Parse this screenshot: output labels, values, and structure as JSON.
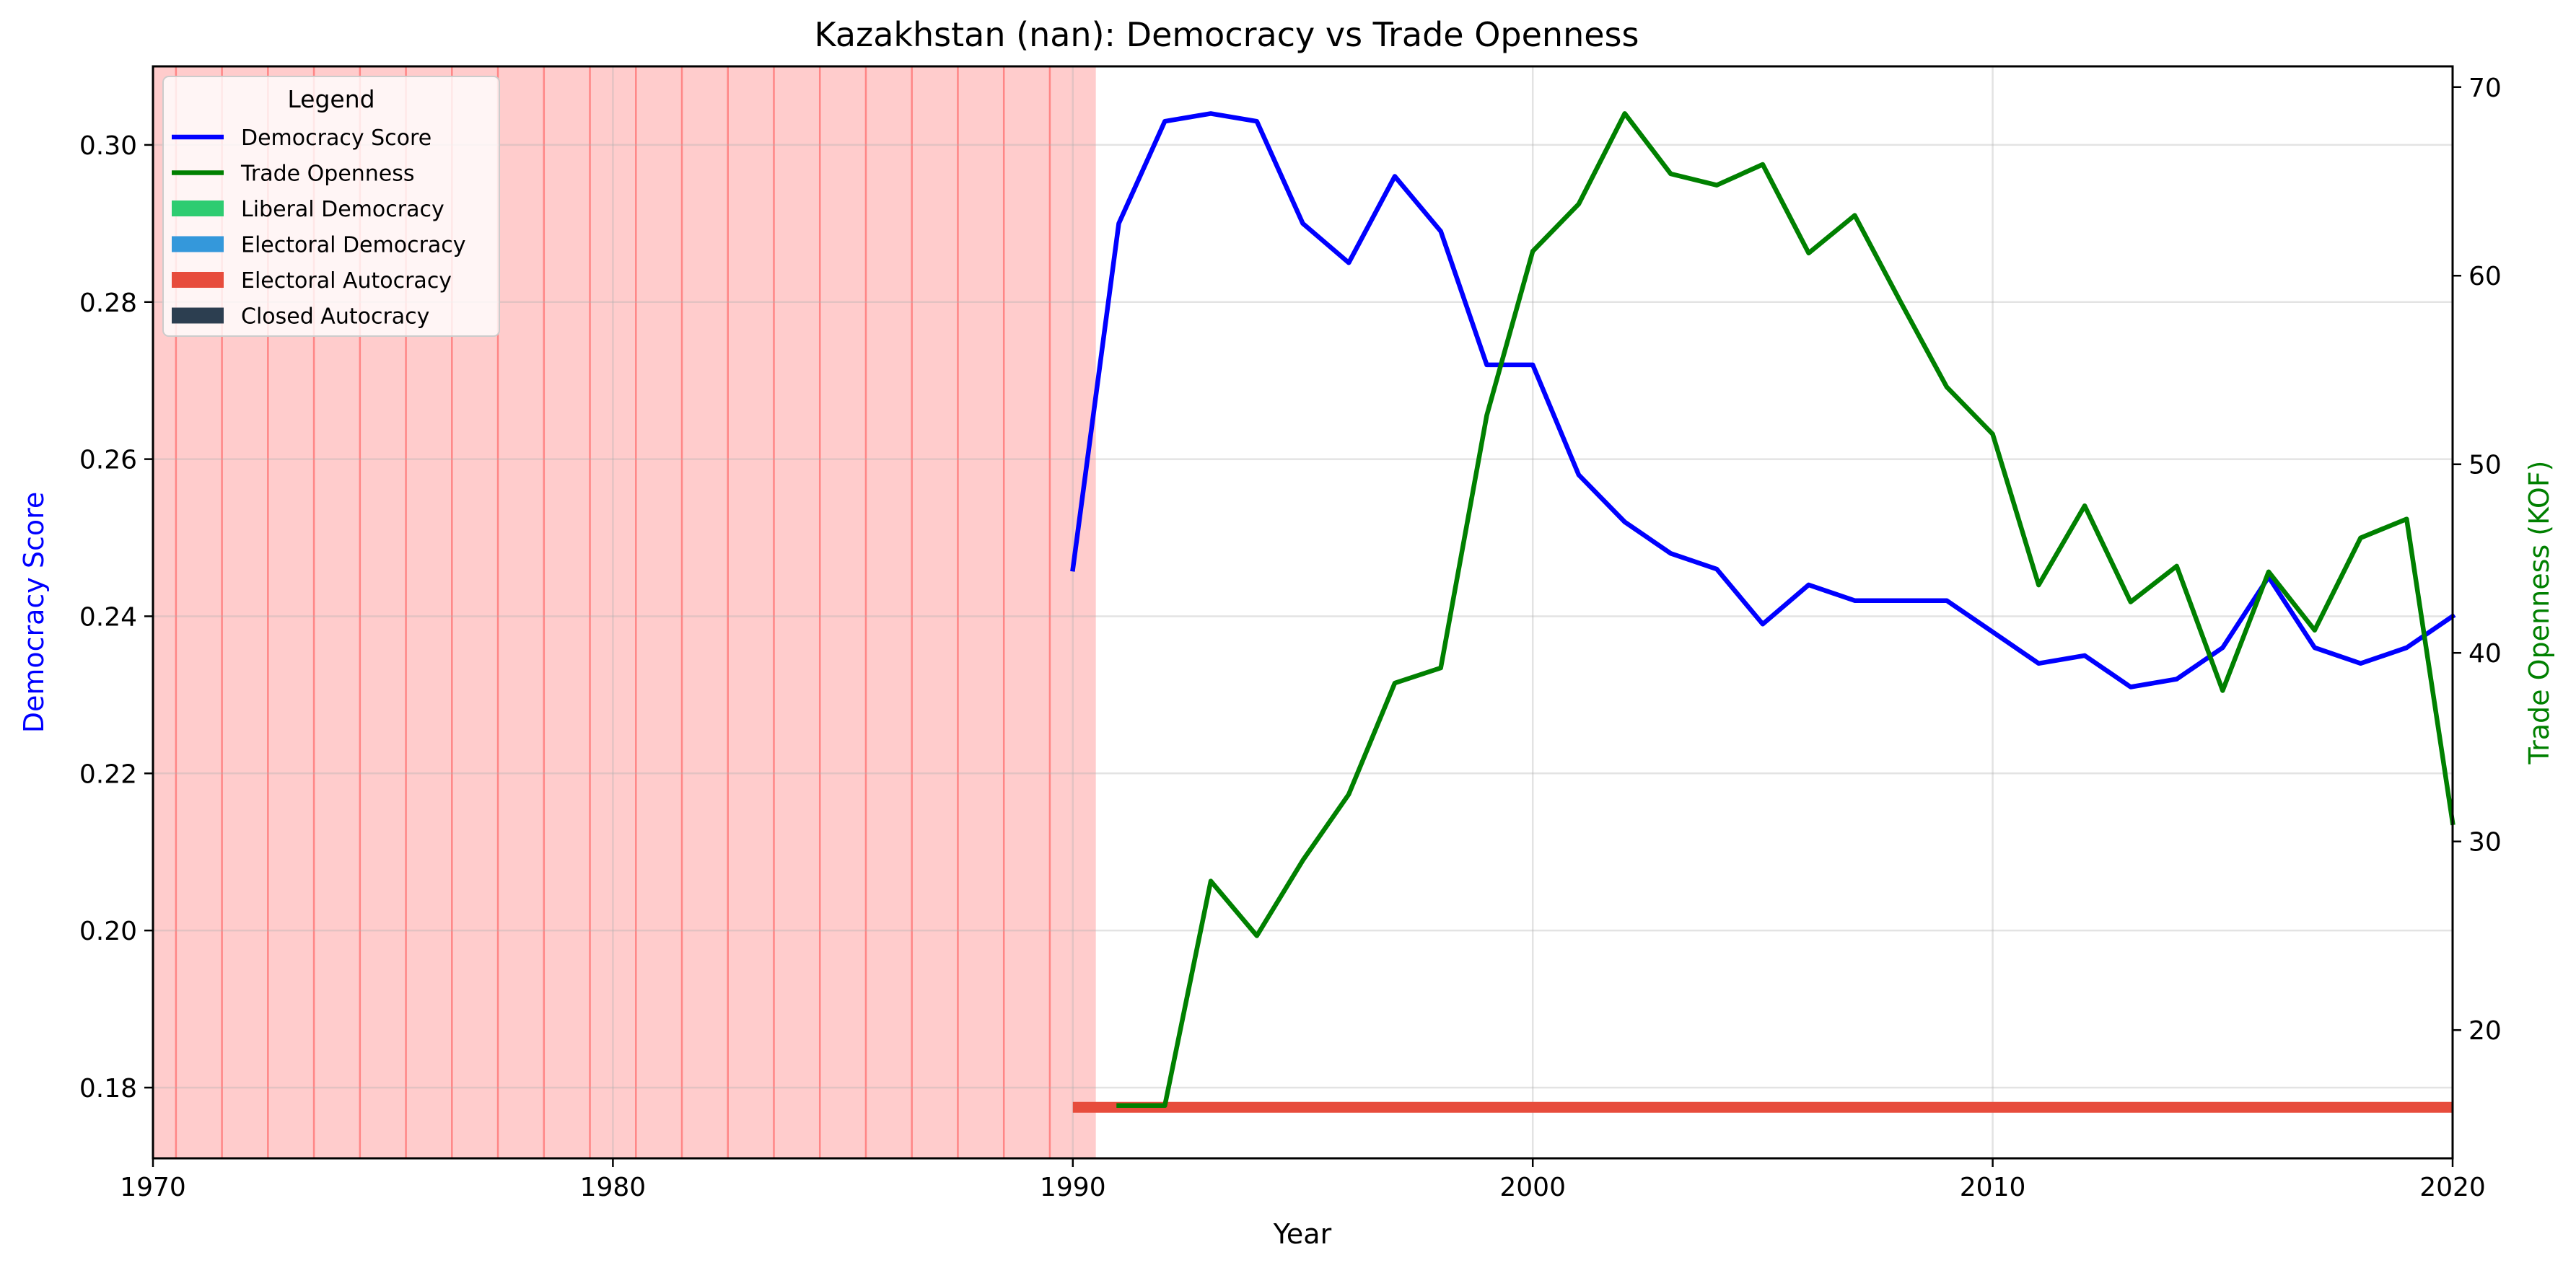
{
  "chart_data": {
    "type": "line",
    "title": "Kazakhstan (nan): Democracy vs Trade Openness",
    "xlabel": "Year",
    "ylabel_left": "Democracy Score",
    "ylabel_right": "Trade Openness (KOF)",
    "xlim": [
      1970,
      2020
    ],
    "ylim_left": [
      0.171,
      0.31
    ],
    "ylim_right": [
      13.2,
      71.1
    ],
    "x_ticks": [
      "1970",
      "1980",
      "1990",
      "2000",
      "2010",
      "2020"
    ],
    "y_left_ticks": [
      "0.18",
      "0.20",
      "0.22",
      "0.24",
      "0.26",
      "0.28",
      "0.30"
    ],
    "y_right_ticks": [
      "20",
      "30",
      "40",
      "50",
      "60",
      "70"
    ],
    "grid": true,
    "legend": {
      "title": "Legend",
      "placement": "top-left",
      "entries": [
        {
          "label": "Democracy Score",
          "color": "#0000ff",
          "kind": "line"
        },
        {
          "label": "Trade Openness",
          "color": "#008000",
          "kind": "line"
        },
        {
          "label": "Liberal Democracy",
          "color": "#2ecc71",
          "kind": "patch"
        },
        {
          "label": "Electoral Democracy",
          "color": "#3498db",
          "kind": "patch"
        },
        {
          "label": "Electoral Autocracy",
          "color": "#e74c3c",
          "kind": "patch"
        },
        {
          "label": "Closed Autocracy",
          "color": "#2c3e50",
          "kind": "patch"
        }
      ]
    },
    "shaded_period": {
      "from": 1970,
      "to": 1990.5,
      "color": "#ff0000",
      "alpha": 0.2
    },
    "shaded_year_lines": [
      1970.5,
      1971.5,
      1972.5,
      1973.5,
      1974.5,
      1975.5,
      1976.5,
      1977.5,
      1978.5,
      1979.5,
      1980.5,
      1981.5,
      1982.5,
      1983.5,
      1984.5,
      1985.5,
      1986.5,
      1987.5,
      1988.5,
      1989.5
    ],
    "regime_band": {
      "from": 1990,
      "to": 2020,
      "y": 0.1775,
      "color": "#e74c3c",
      "label": "Electoral Autocracy"
    },
    "series": [
      {
        "name": "Democracy Score",
        "axis": "left",
        "color": "#0000ff",
        "x": [
          1990,
          1991,
          1992,
          1993,
          1994,
          1995,
          1996,
          1997,
          1998,
          1999,
          2000,
          2001,
          2002,
          2003,
          2004,
          2005,
          2006,
          2007,
          2008,
          2009,
          2010,
          2011,
          2012,
          2013,
          2014,
          2015,
          2016,
          2017,
          2018,
          2019,
          2020
        ],
        "values": [
          0.246,
          0.29,
          0.303,
          0.304,
          0.303,
          0.29,
          0.285,
          0.296,
          0.289,
          0.272,
          0.272,
          0.258,
          0.252,
          0.248,
          0.246,
          0.239,
          0.244,
          0.242,
          0.242,
          0.242,
          0.238,
          0.234,
          0.235,
          0.231,
          0.232,
          0.236,
          0.245,
          0.236,
          0.234,
          0.236,
          0.24
        ]
      },
      {
        "name": "Trade Openness",
        "axis": "right",
        "color": "#008000",
        "x": [
          1991,
          1992,
          1993,
          1994,
          1995,
          1996,
          1997,
          1998,
          1999,
          2000,
          2001,
          2002,
          2003,
          2004,
          2005,
          2006,
          2007,
          2008,
          2009,
          2010,
          2011,
          2012,
          2013,
          2014,
          2015,
          2016,
          2017,
          2018,
          2019,
          2020
        ],
        "values": [
          16.0,
          16.0,
          27.9,
          25.0,
          29.0,
          32.5,
          38.4,
          39.2,
          52.6,
          61.3,
          63.8,
          68.6,
          65.4,
          64.8,
          65.9,
          61.2,
          63.2,
          58.6,
          54.1,
          51.6,
          43.6,
          47.8,
          42.7,
          44.6,
          38.0,
          44.3,
          41.2,
          46.1,
          47.1,
          31.0
        ]
      }
    ]
  }
}
